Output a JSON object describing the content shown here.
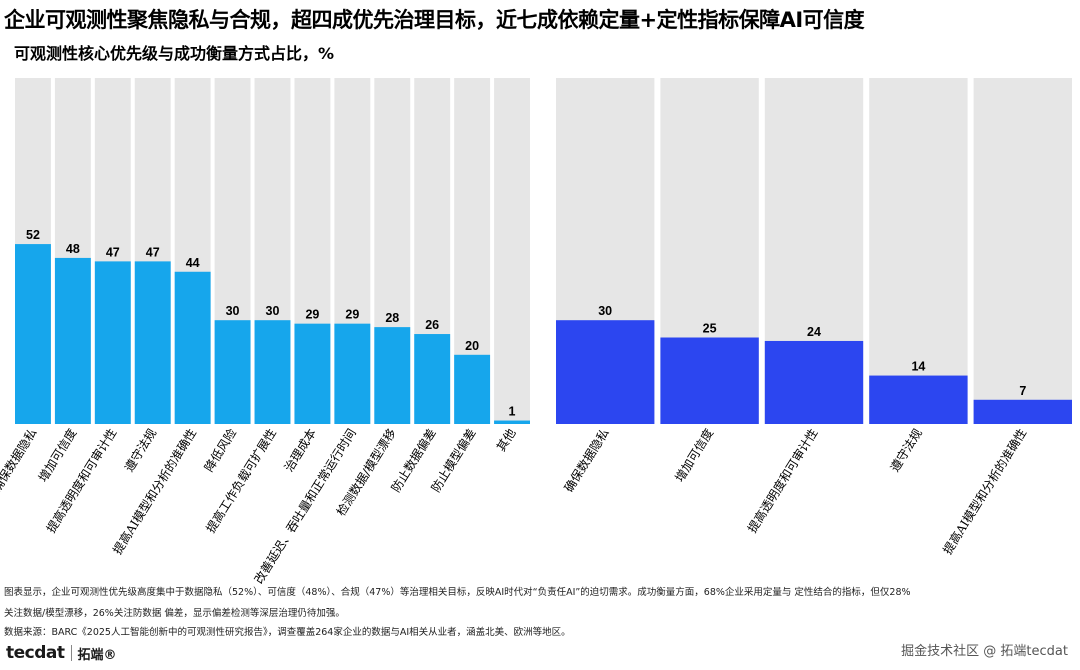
{
  "title": "企业可观测性聚焦隐私与合规，超四成优先治理目标，近七成依赖定量+定性指标保障AI可信度",
  "subtitle": "可观测性核心优先级与成功衡量方式占比，%",
  "chart_data": [
    {
      "type": "bar",
      "name": "可观测性核心优先级",
      "categories": [
        "确保数据隐私",
        "增加可信度",
        "提高透明度和可审计性",
        "遵守法规",
        "提高AI模型和分析的准确性",
        "降低风险",
        "提高工作负载可扩展性",
        "治理成本",
        "改善延迟、吞吐量和正常运行时间",
        "检测数据/模型漂移",
        "防止数据偏差",
        "防止模型偏差",
        "其他"
      ],
      "values": [
        52,
        48,
        47,
        47,
        44,
        30,
        30,
        29,
        29,
        28,
        26,
        20,
        1
      ],
      "ylim": [
        0,
        100
      ],
      "bar_color": "#16a6ec",
      "background_color": "#e6e6e6"
    },
    {
      "type": "bar",
      "name": "成功衡量方式",
      "categories": [
        "确保数据隐私",
        "增加可信度",
        "提高透明度和可审计性",
        "遵守法规",
        "提高AI模型和分析的准确性"
      ],
      "values": [
        30,
        25,
        24,
        14,
        7
      ],
      "ylim": [
        0,
        100
      ],
      "bar_color": "#2c46f0",
      "background_color": "#e6e6e6"
    }
  ],
  "notes": {
    "line1": "图表显示，企业可观测性优先级高度集中于数据隐私（52%）、可信度（48%）、合规（47%）等治理相关目标，反映AI时代对“负责任AI”的迫切需求。成功衡量方面，68%企业采用定量与 定性结合的指标，但仅28%",
    "line2": "关注数据/模型漂移，26%关注防数据 偏差，显示偏差检测等深层治理仍待加强。",
    "line3": "数据来源：BARC《2025人工智能创新中的可观测性研究报告》，调查覆盖264家企业的数据与AI相关从业者，涵盖北美、欧洲等地区。"
  },
  "logo": {
    "mark": "tecdat",
    "cn": "拓端®"
  },
  "watermark": "掘金技术社区 @ 拓端tecdat"
}
